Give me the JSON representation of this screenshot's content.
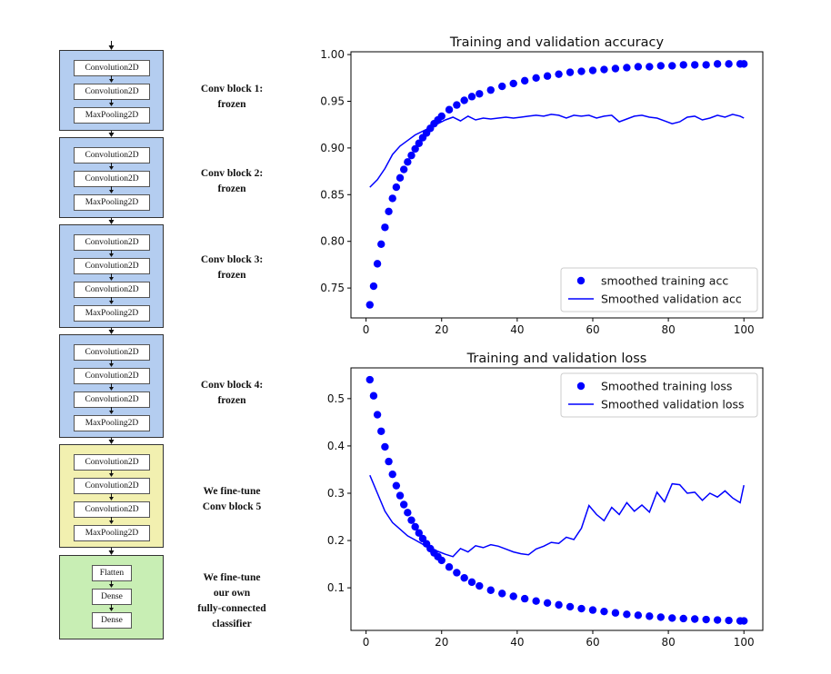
{
  "diagram": {
    "blocks": [
      {
        "layers": [
          "Convolution2D",
          "Convolution2D",
          "MaxPooling2D"
        ],
        "color": "#b4cdf0",
        "label1": "Conv block 1:",
        "label2": "frozen"
      },
      {
        "layers": [
          "Convolution2D",
          "Convolution2D",
          "MaxPooling2D"
        ],
        "color": "#b4cdf0",
        "label1": "Conv block 2:",
        "label2": "frozen"
      },
      {
        "layers": [
          "Convolution2D",
          "Convolution2D",
          "Convolution2D",
          "MaxPooling2D"
        ],
        "color": "#b4cdf0",
        "label1": "Conv block 3:",
        "label2": "frozen"
      },
      {
        "layers": [
          "Convolution2D",
          "Convolution2D",
          "Convolution2D",
          "MaxPooling2D"
        ],
        "color": "#b4cdf0",
        "label1": "Conv block 4:",
        "label2": "frozen"
      },
      {
        "layers": [
          "Convolution2D",
          "Convolution2D",
          "Convolution2D",
          "MaxPooling2D"
        ],
        "color": "#f2f0b0",
        "label1": "We fine-tune",
        "label2": "Conv block 5"
      },
      {
        "layers": [
          "Flatten",
          "Dense",
          "Dense"
        ],
        "color": "#c8eeb4",
        "label1": "We fine-tune",
        "label2": "our own",
        "label3": "fully-connected",
        "label4": "classifier"
      }
    ]
  },
  "colors": {
    "series": "#0000ff"
  },
  "chart_data": [
    {
      "type": "scatter+line",
      "title": "Training and validation accuracy",
      "xlabel": "",
      "ylabel": "",
      "xlim": [
        -4,
        105
      ],
      "ylim": [
        0.718,
        1.003
      ],
      "xticks": [
        0,
        20,
        40,
        60,
        80,
        100
      ],
      "yticks": [
        0.75,
        0.8,
        0.85,
        0.9,
        0.95,
        1.0
      ],
      "ytick_labels": [
        "0.75",
        "0.80",
        "0.85",
        "0.90",
        "0.95",
        "1.00"
      ],
      "legend": "lower-right",
      "series": [
        {
          "name": "smoothed training acc",
          "style": "dots",
          "x": [
            1,
            2,
            3,
            4,
            5,
            6,
            7,
            8,
            9,
            10,
            11,
            12,
            13,
            14,
            15,
            16,
            17,
            18,
            19,
            20,
            22,
            24,
            26,
            28,
            30,
            33,
            36,
            39,
            42,
            45,
            48,
            51,
            54,
            57,
            60,
            63,
            66,
            69,
            72,
            75,
            78,
            81,
            84,
            87,
            90,
            93,
            96,
            99,
            100
          ],
          "values": [
            0.732,
            0.752,
            0.776,
            0.797,
            0.815,
            0.832,
            0.846,
            0.858,
            0.868,
            0.877,
            0.885,
            0.892,
            0.899,
            0.905,
            0.911,
            0.916,
            0.921,
            0.926,
            0.93,
            0.934,
            0.941,
            0.946,
            0.951,
            0.955,
            0.958,
            0.962,
            0.966,
            0.969,
            0.972,
            0.975,
            0.977,
            0.979,
            0.981,
            0.982,
            0.983,
            0.984,
            0.985,
            0.986,
            0.987,
            0.987,
            0.988,
            0.988,
            0.989,
            0.989,
            0.989,
            0.99,
            0.99,
            0.99,
            0.99
          ]
        },
        {
          "name": "Smoothed validation acc",
          "style": "line",
          "x": [
            1,
            3,
            5,
            7,
            9,
            11,
            13,
            15,
            17,
            19,
            21,
            23,
            25,
            27,
            29,
            31,
            33,
            35,
            37,
            39,
            41,
            43,
            45,
            47,
            49,
            51,
            53,
            55,
            57,
            59,
            61,
            63,
            65,
            67,
            69,
            71,
            73,
            75,
            77,
            79,
            81,
            83,
            85,
            87,
            89,
            91,
            93,
            95,
            97,
            99,
            100
          ],
          "values": [
            0.858,
            0.866,
            0.878,
            0.893,
            0.902,
            0.908,
            0.914,
            0.918,
            0.922,
            0.926,
            0.93,
            0.933,
            0.929,
            0.934,
            0.93,
            0.932,
            0.931,
            0.932,
            0.933,
            0.932,
            0.933,
            0.934,
            0.935,
            0.934,
            0.936,
            0.935,
            0.932,
            0.935,
            0.934,
            0.935,
            0.932,
            0.934,
            0.935,
            0.928,
            0.931,
            0.934,
            0.935,
            0.933,
            0.932,
            0.929,
            0.926,
            0.928,
            0.933,
            0.934,
            0.93,
            0.932,
            0.935,
            0.933,
            0.936,
            0.934,
            0.932
          ]
        }
      ]
    },
    {
      "type": "scatter+line",
      "title": "Training and validation loss",
      "xlabel": "",
      "ylabel": "",
      "xlim": [
        -4,
        105
      ],
      "ylim": [
        0.01,
        0.565
      ],
      "xticks": [
        0,
        20,
        40,
        60,
        80,
        100
      ],
      "yticks": [
        0.1,
        0.2,
        0.3,
        0.4,
        0.5
      ],
      "ytick_labels": [
        "0.1",
        "0.2",
        "0.3",
        "0.4",
        "0.5"
      ],
      "legend": "upper-right",
      "series": [
        {
          "name": "Smoothed training loss",
          "style": "dots",
          "x": [
            1,
            2,
            3,
            4,
            5,
            6,
            7,
            8,
            9,
            10,
            11,
            12,
            13,
            14,
            15,
            16,
            17,
            18,
            19,
            20,
            22,
            24,
            26,
            28,
            30,
            33,
            36,
            39,
            42,
            45,
            48,
            51,
            54,
            57,
            60,
            63,
            66,
            69,
            72,
            75,
            78,
            81,
            84,
            87,
            90,
            93,
            96,
            99,
            100
          ],
          "values": [
            0.54,
            0.506,
            0.466,
            0.431,
            0.398,
            0.367,
            0.34,
            0.316,
            0.295,
            0.276,
            0.259,
            0.243,
            0.229,
            0.216,
            0.204,
            0.193,
            0.183,
            0.174,
            0.166,
            0.158,
            0.144,
            0.132,
            0.121,
            0.112,
            0.104,
            0.095,
            0.088,
            0.082,
            0.077,
            0.072,
            0.068,
            0.064,
            0.06,
            0.056,
            0.053,
            0.05,
            0.047,
            0.044,
            0.042,
            0.04,
            0.038,
            0.036,
            0.035,
            0.034,
            0.033,
            0.032,
            0.031,
            0.03,
            0.03
          ]
        },
        {
          "name": "Smoothed validation loss",
          "style": "line",
          "x": [
            1,
            3,
            5,
            7,
            9,
            11,
            13,
            15,
            17,
            19,
            21,
            23,
            25,
            27,
            29,
            31,
            33,
            35,
            37,
            39,
            41,
            43,
            45,
            47,
            49,
            51,
            53,
            55,
            57,
            59,
            61,
            63,
            65,
            67,
            69,
            71,
            73,
            75,
            77,
            79,
            81,
            83,
            85,
            87,
            89,
            91,
            93,
            95,
            97,
            99,
            100
          ],
          "values": [
            0.338,
            0.3,
            0.262,
            0.238,
            0.224,
            0.21,
            0.201,
            0.192,
            0.185,
            0.177,
            0.171,
            0.166,
            0.183,
            0.176,
            0.189,
            0.185,
            0.191,
            0.188,
            0.182,
            0.176,
            0.172,
            0.17,
            0.182,
            0.188,
            0.196,
            0.194,
            0.207,
            0.202,
            0.226,
            0.274,
            0.255,
            0.242,
            0.27,
            0.255,
            0.28,
            0.262,
            0.275,
            0.26,
            0.302,
            0.282,
            0.32,
            0.318,
            0.3,
            0.302,
            0.285,
            0.3,
            0.292,
            0.305,
            0.29,
            0.28,
            0.317
          ]
        }
      ]
    }
  ]
}
